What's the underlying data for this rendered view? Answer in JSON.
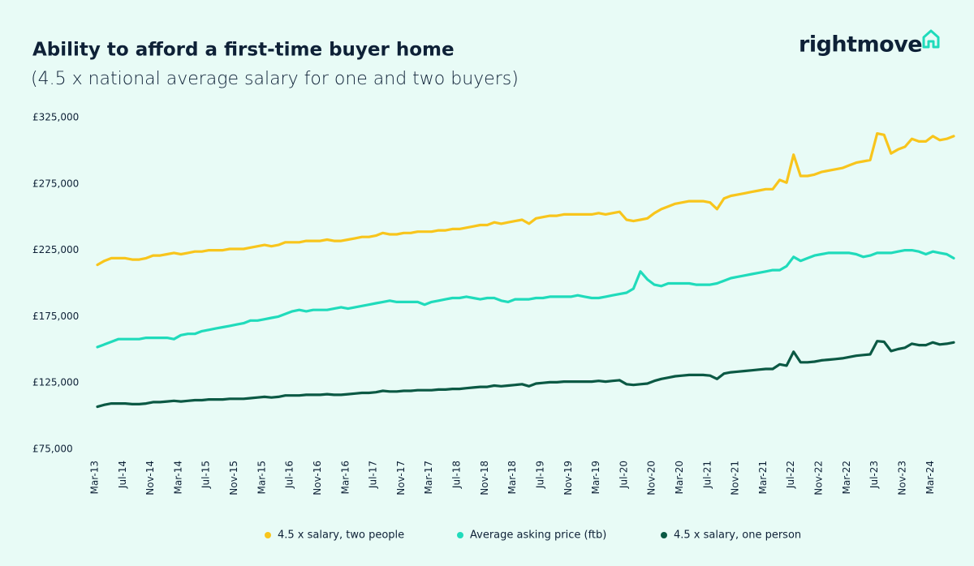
{
  "brand": "rightmove",
  "chart_data": {
    "type": "line",
    "title": "Ability to afford a first-time buyer home",
    "subtitle": "(4.5 x national average salary for one and two buyers)",
    "categories": [
      "Mar-13",
      null,
      null,
      null,
      "Jul-14",
      null,
      null,
      null,
      "Nov-14",
      null,
      null,
      null,
      "Mar-14",
      null,
      null,
      null,
      "Jul-15",
      null,
      null,
      null,
      "Nov-15",
      null,
      null,
      null,
      "Mar-15",
      null,
      null,
      null,
      "Jul-16",
      null,
      null,
      null,
      "Nov-16",
      null,
      null,
      null,
      "Mar-16",
      null,
      null,
      null,
      "Jul-17",
      null,
      null,
      null,
      "Nov-17",
      null,
      null,
      null,
      "Mar-17",
      null,
      null,
      null,
      "Jul-18",
      null,
      null,
      null,
      "Nov-18",
      null,
      null,
      null,
      "Mar-18",
      null,
      null,
      null,
      "Jul-19",
      null,
      null,
      null,
      "Nov-19",
      null,
      null,
      null,
      "Mar-19",
      null,
      null,
      null,
      "Jul-20",
      null,
      null,
      null,
      "Nov-20",
      null,
      null,
      null,
      "Mar-20",
      null,
      null,
      null,
      "Jul-21",
      null,
      null,
      null,
      "Nov-21",
      null,
      null,
      null,
      "Mar-21",
      null,
      null,
      null,
      "Jul-22",
      null,
      null,
      null,
      "Nov-22",
      null,
      null,
      null,
      "Mar-22",
      null,
      null,
      null,
      "Jul-23",
      null,
      null,
      null,
      "Nov-23",
      null,
      null,
      null,
      "Mar-24",
      null,
      null,
      null
    ],
    "series": [
      {
        "name": "4.5 x salary, two people",
        "color": "#f8c51c",
        "values": [
          214000,
          217000,
          219000,
          219000,
          219000,
          218000,
          218000,
          219000,
          221000,
          221000,
          222000,
          223000,
          222000,
          223000,
          224000,
          224000,
          225000,
          225000,
          225000,
          226000,
          226000,
          226000,
          227000,
          228000,
          229000,
          228000,
          229000,
          231000,
          231000,
          231000,
          232000,
          232000,
          232000,
          233000,
          232000,
          232000,
          233000,
          234000,
          235000,
          235000,
          236000,
          238000,
          237000,
          237000,
          238000,
          238000,
          239000,
          239000,
          239000,
          240000,
          240000,
          241000,
          241000,
          242000,
          243000,
          244000,
          244000,
          246000,
          245000,
          246000,
          247000,
          248000,
          245000,
          249000,
          250000,
          251000,
          251000,
          252000,
          252000,
          252000,
          252000,
          252000,
          253000,
          252000,
          253000,
          254000,
          248000,
          247000,
          248000,
          249000,
          253000,
          256000,
          258000,
          260000,
          261000,
          262000,
          262000,
          262000,
          261000,
          256000,
          264000,
          266000,
          267000,
          268000,
          269000,
          270000,
          271000,
          271000,
          278000,
          276000,
          297000,
          281000,
          281000,
          282000,
          284000,
          285000,
          286000,
          287000,
          289000,
          291000,
          292000,
          293000,
          313000,
          312000,
          298000,
          301000,
          303000,
          309000,
          307000,
          307000,
          311000,
          308000,
          309000,
          311000
        ]
      },
      {
        "name": "Average asking price (ftb)",
        "color": "#20dbbb",
        "values": [
          152000,
          154000,
          156000,
          158000,
          158000,
          158000,
          158000,
          159000,
          159000,
          159000,
          159000,
          158000,
          161000,
          162000,
          162000,
          164000,
          165000,
          166000,
          167000,
          168000,
          169000,
          170000,
          172000,
          172000,
          173000,
          174000,
          175000,
          177000,
          179000,
          180000,
          179000,
          180000,
          180000,
          180000,
          181000,
          182000,
          181000,
          182000,
          183000,
          184000,
          185000,
          186000,
          187000,
          186000,
          186000,
          186000,
          186000,
          184000,
          186000,
          187000,
          188000,
          189000,
          189000,
          190000,
          189000,
          188000,
          189000,
          189000,
          187000,
          186000,
          188000,
          188000,
          188000,
          189000,
          189000,
          190000,
          190000,
          190000,
          190000,
          191000,
          190000,
          189000,
          189000,
          190000,
          191000,
          192000,
          193000,
          196000,
          209000,
          203000,
          199000,
          198000,
          200000,
          200000,
          200000,
          200000,
          199000,
          199000,
          199000,
          200000,
          202000,
          204000,
          205000,
          206000,
          207000,
          208000,
          209000,
          210000,
          210000,
          213000,
          220000,
          217000,
          219000,
          221000,
          222000,
          223000,
          223000,
          223000,
          223000,
          222000,
          220000,
          221000,
          223000,
          223000,
          223000,
          224000,
          225000,
          225000,
          224000,
          222000,
          224000,
          223000,
          222000,
          219000
        ]
      },
      {
        "name": "4.5 x salary, one person",
        "color": "#0b5944",
        "values": [
          107000,
          108500,
          109500,
          109500,
          109500,
          109000,
          109000,
          109500,
          110500,
          110500,
          111000,
          111500,
          111000,
          111500,
          112000,
          112000,
          112500,
          112500,
          112500,
          113000,
          113000,
          113000,
          113500,
          114000,
          114500,
          114000,
          114500,
          115500,
          115500,
          115500,
          116000,
          116000,
          116000,
          116500,
          116000,
          116000,
          116500,
          117000,
          117500,
          117500,
          118000,
          119000,
          118500,
          118500,
          119000,
          119000,
          119500,
          119500,
          119500,
          120000,
          120000,
          120500,
          120500,
          121000,
          121500,
          122000,
          122000,
          123000,
          122500,
          123000,
          123500,
          124000,
          122500,
          124500,
          125000,
          125500,
          125500,
          126000,
          126000,
          126000,
          126000,
          126000,
          126500,
          126000,
          126500,
          127000,
          124000,
          123500,
          124000,
          124500,
          126500,
          128000,
          129000,
          130000,
          130500,
          131000,
          131000,
          131000,
          130500,
          128000,
          132000,
          133000,
          133500,
          134000,
          134500,
          135000,
          135500,
          135500,
          139000,
          138000,
          148500,
          140500,
          140500,
          141000,
          142000,
          142500,
          143000,
          143500,
          144500,
          145500,
          146000,
          146500,
          156500,
          156000,
          149000,
          150500,
          151500,
          154500,
          153500,
          153500,
          155500,
          154000,
          154500,
          155500
        ]
      }
    ],
    "ylim": [
      75000,
      325000
    ],
    "yticks": [
      {
        "value": 75000,
        "label": "£75,000"
      },
      {
        "value": 125000,
        "label": "£125,000"
      },
      {
        "value": 175000,
        "label": "£175,000"
      },
      {
        "value": 225000,
        "label": "£225,000"
      },
      {
        "value": 275000,
        "label": "£275,000"
      },
      {
        "value": 325000,
        "label": "£325,000"
      }
    ],
    "grid": false,
    "legend": "bottom"
  }
}
